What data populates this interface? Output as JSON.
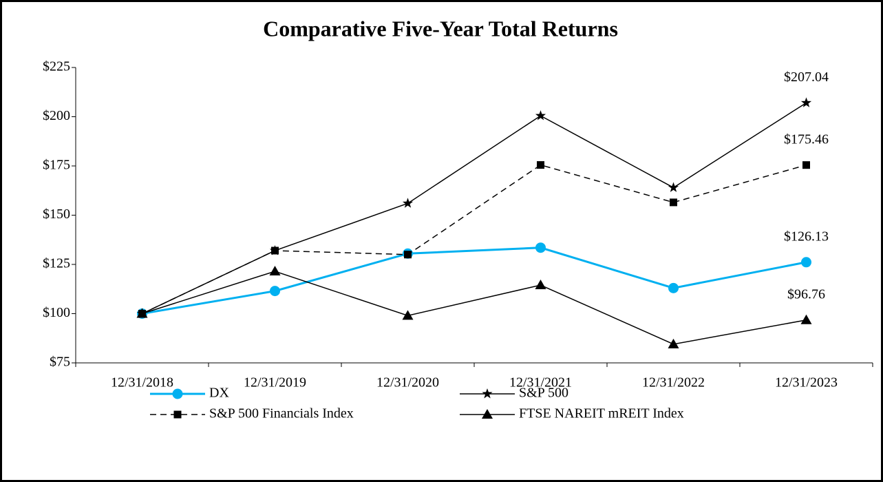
{
  "chart_data": {
    "type": "line",
    "title": "Comparative Five-Year Total Returns",
    "categories": [
      "12/31/2018",
      "12/31/2019",
      "12/31/2020",
      "12/31/2021",
      "12/31/2022",
      "12/31/2023"
    ],
    "ylim": [
      75,
      225
    ],
    "yticks": [
      {
        "value": 75,
        "label": "$75"
      },
      {
        "value": 100,
        "label": "$100"
      },
      {
        "value": 125,
        "label": "$125"
      },
      {
        "value": 150,
        "label": "$150"
      },
      {
        "value": 175,
        "label": "$175"
      },
      {
        "value": 200,
        "label": "$200"
      },
      {
        "value": 225,
        "label": "$225"
      }
    ],
    "grid": false,
    "series": [
      {
        "name": "DX",
        "color": "#00b0f0",
        "marker": "circle",
        "dashed": false,
        "values": [
          100,
          111.5,
          130.5,
          133.5,
          113,
          126.13
        ],
        "value_labels": [
          null,
          null,
          null,
          null,
          null,
          "$126.13"
        ]
      },
      {
        "name": "S&P 500",
        "color": "#000000",
        "marker": "star",
        "dashed": false,
        "values": [
          100,
          132,
          156,
          200.5,
          164,
          207.04
        ],
        "value_labels": [
          null,
          null,
          null,
          null,
          null,
          "$207.04"
        ]
      },
      {
        "name": "S&P 500 Financials Index",
        "color": "#000000",
        "marker": "square",
        "dashed": true,
        "values": [
          100,
          132,
          130,
          175.5,
          156.5,
          175.46
        ],
        "value_labels": [
          null,
          null,
          null,
          null,
          null,
          "$175.46"
        ]
      },
      {
        "name": "FTSE NAREIT mREIT Index",
        "color": "#000000",
        "marker": "triangle",
        "dashed": false,
        "values": [
          100,
          121.5,
          99,
          114.5,
          84.5,
          96.76
        ],
        "value_labels": [
          null,
          null,
          null,
          null,
          null,
          "$96.76"
        ]
      }
    ]
  }
}
